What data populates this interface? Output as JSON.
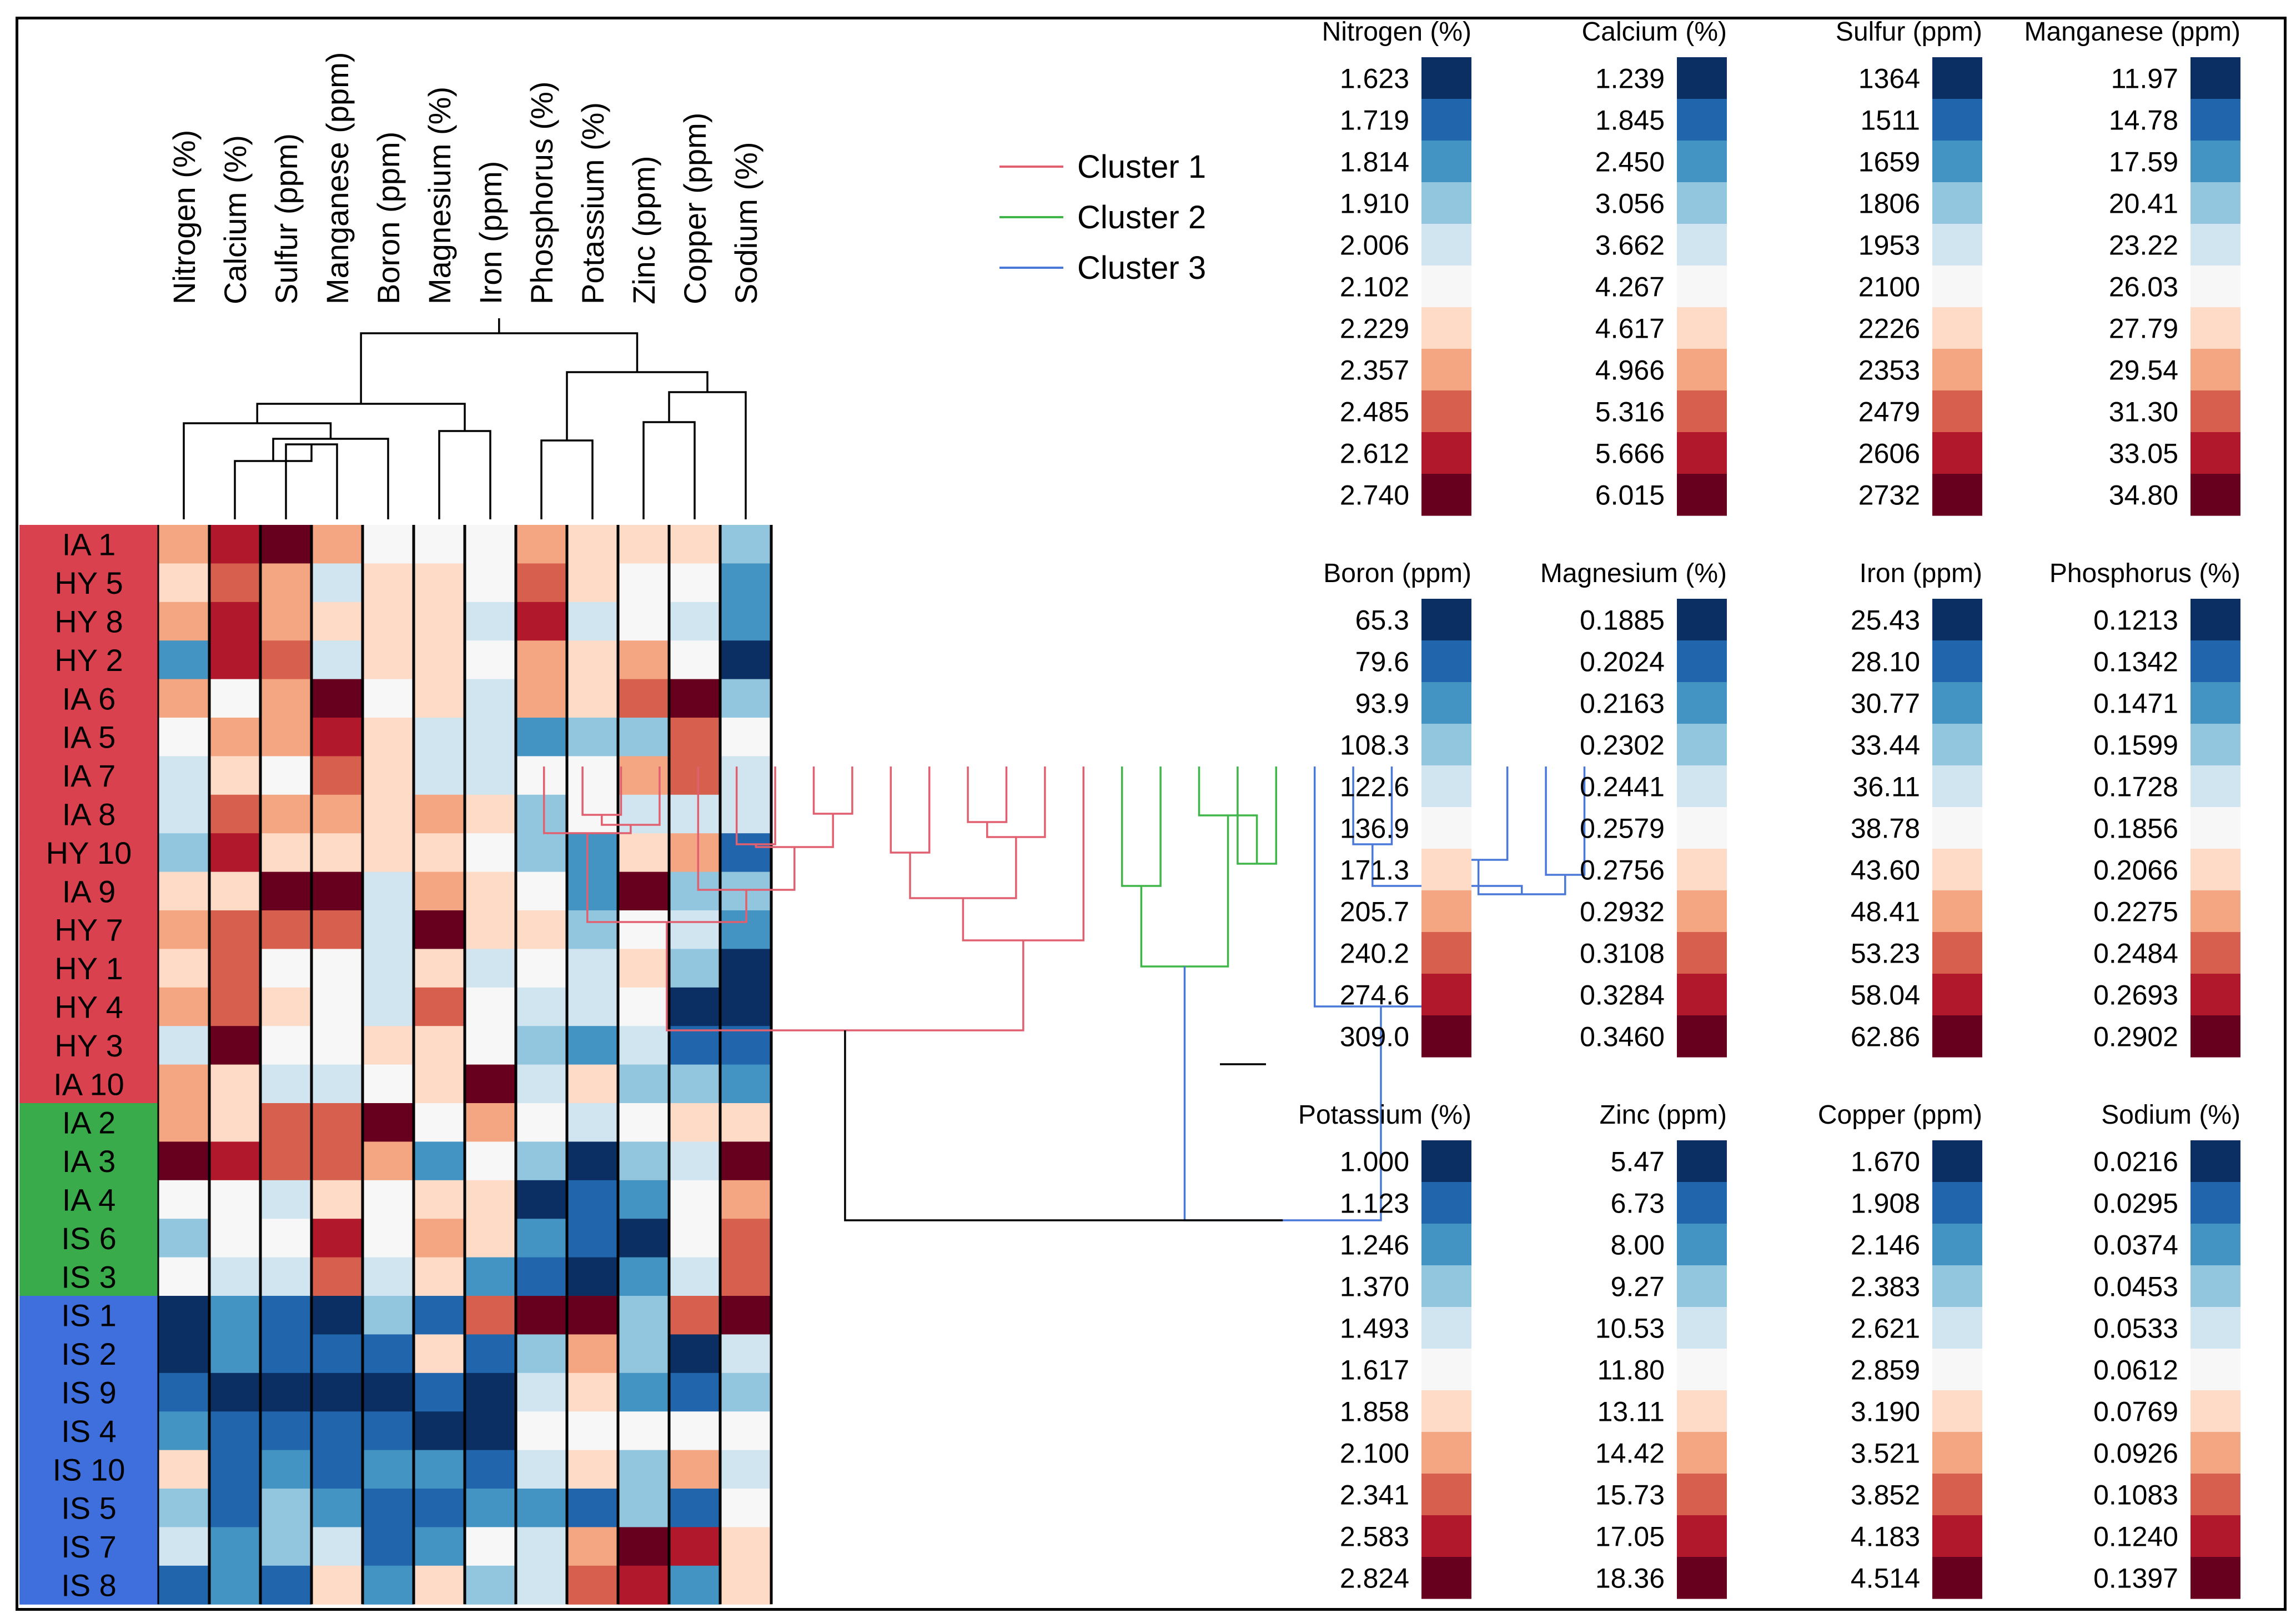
{
  "chart_data": {
    "type": "heatmap",
    "title": "",
    "scale_note": "Cell colors encode per-variable level on an 11-step scale: 1 = dark blue (lowest) ... 6 = white ... 11 = dark red (highest)",
    "variables": [
      "Nitrogen (%)",
      "Calcium (%)",
      "Sulfur (ppm)",
      "Manganese (ppm)",
      "Boron (ppm)",
      "Magnesium (%)",
      "Iron (ppm)",
      "Phosphorus (%)",
      "Potassium (%)",
      "Zinc (ppm)",
      "Copper (ppm)",
      "Sodium (%)"
    ],
    "samples": [
      "IA 1",
      "HY 5",
      "HY 8",
      "HY 2",
      "IA 6",
      "IA 5",
      "IA 7",
      "IA 8",
      "HY 10",
      "IA 9",
      "HY 7",
      "HY 1",
      "HY 4",
      "HY 3",
      "IA 10",
      "IA 2",
      "IA 3",
      "IA 4",
      "IS 6",
      "IS 3",
      "IS 1",
      "IS 2",
      "IS 9",
      "IS 4",
      "IS 10",
      "IS 5",
      "IS 7",
      "IS 8"
    ],
    "clusters": [
      {
        "name": "Cluster 1",
        "color": "#d9414f",
        "line_color": "#e06070",
        "members": [
          "IA 1",
          "HY 5",
          "HY 8",
          "HY 2",
          "IA 6",
          "IA 5",
          "IA 7",
          "IA 8",
          "HY 10",
          "IA 9",
          "HY 7",
          "HY 1",
          "HY 4",
          "HY 3",
          "IA 10"
        ]
      },
      {
        "name": "Cluster 2",
        "color": "#3aab4a",
        "line_color": "#40b54a",
        "members": [
          "IA 2",
          "IA 3",
          "IA 4",
          "IS 6",
          "IS 3"
        ]
      },
      {
        "name": "Cluster 3",
        "color": "#3f6fdd",
        "line_color": "#4a78d8",
        "members": [
          "IS 1",
          "IS 2",
          "IS 9",
          "IS 4",
          "IS 10",
          "IS 5",
          "IS 7",
          "IS 8"
        ]
      }
    ],
    "levels": [
      [
        8,
        10,
        11,
        8,
        6,
        6,
        6,
        8,
        7,
        7,
        7,
        4
      ],
      [
        7,
        9,
        8,
        5,
        7,
        7,
        6,
        9,
        7,
        6,
        6,
        3
      ],
      [
        8,
        10,
        8,
        7,
        7,
        7,
        5,
        10,
        5,
        6,
        5,
        3
      ],
      [
        3,
        10,
        9,
        5,
        7,
        7,
        6,
        8,
        7,
        8,
        6,
        1
      ],
      [
        8,
        6,
        8,
        11,
        6,
        7,
        5,
        8,
        7,
        9,
        11,
        4
      ],
      [
        6,
        8,
        8,
        10,
        7,
        5,
        5,
        3,
        4,
        4,
        9,
        6
      ],
      [
        5,
        7,
        6,
        9,
        7,
        5,
        5,
        6,
        6,
        8,
        9,
        5
      ],
      [
        5,
        9,
        8,
        8,
        7,
        8,
        7,
        4,
        6,
        5,
        5,
        5
      ],
      [
        4,
        10,
        7,
        7,
        7,
        7,
        6,
        4,
        3,
        7,
        8,
        2
      ],
      [
        7,
        7,
        11,
        11,
        5,
        8,
        7,
        6,
        3,
        11,
        4,
        4
      ],
      [
        8,
        9,
        9,
        9,
        5,
        11,
        7,
        7,
        4,
        6,
        5,
        3
      ],
      [
        7,
        9,
        6,
        6,
        5,
        7,
        5,
        6,
        5,
        7,
        4,
        1
      ],
      [
        8,
        9,
        7,
        6,
        5,
        9,
        6,
        5,
        5,
        6,
        1,
        1
      ],
      [
        5,
        11,
        6,
        6,
        7,
        7,
        6,
        4,
        3,
        5,
        2,
        2
      ],
      [
        8,
        7,
        5,
        5,
        6,
        7,
        11,
        5,
        7,
        4,
        4,
        3
      ],
      [
        8,
        7,
        9,
        9,
        11,
        6,
        8,
        6,
        5,
        6,
        7,
        7
      ],
      [
        11,
        10,
        9,
        9,
        8,
        3,
        6,
        4,
        1,
        4,
        5,
        11
      ],
      [
        6,
        6,
        5,
        7,
        6,
        7,
        7,
        1,
        2,
        3,
        6,
        8
      ],
      [
        4,
        6,
        6,
        10,
        6,
        8,
        7,
        3,
        2,
        1,
        6,
        9
      ],
      [
        6,
        5,
        5,
        9,
        5,
        7,
        3,
        2,
        1,
        3,
        5,
        9
      ],
      [
        1,
        3,
        2,
        1,
        4,
        2,
        9,
        11,
        11,
        4,
        9,
        11
      ],
      [
        1,
        3,
        2,
        2,
        2,
        7,
        2,
        4,
        8,
        4,
        1,
        5
      ],
      [
        2,
        1,
        1,
        1,
        1,
        2,
        1,
        5,
        7,
        3,
        2,
        4
      ],
      [
        3,
        2,
        2,
        2,
        2,
        1,
        1,
        6,
        6,
        6,
        6,
        6
      ],
      [
        7,
        2,
        3,
        2,
        3,
        3,
        2,
        5,
        7,
        4,
        8,
        5
      ],
      [
        4,
        2,
        4,
        3,
        2,
        2,
        3,
        3,
        2,
        4,
        2,
        6
      ],
      [
        5,
        3,
        4,
        5,
        2,
        3,
        6,
        5,
        8,
        11,
        10,
        7
      ],
      [
        2,
        3,
        2,
        7,
        3,
        7,
        4,
        5,
        9,
        10,
        3,
        7
      ]
    ],
    "legend": {
      "entries": [
        "Cluster 1",
        "Cluster 2",
        "Cluster 3"
      ],
      "colors": [
        "#e06070",
        "#40b54a",
        "#4a78d8"
      ],
      "placement": "top-center"
    },
    "color_scales": [
      {
        "variable": "Nitrogen (%)",
        "values": [
          "1.623",
          "1.719",
          "1.814",
          "1.910",
          "2.006",
          "2.102",
          "2.229",
          "2.357",
          "2.485",
          "2.612",
          "2.740"
        ]
      },
      {
        "variable": "Calcium (%)",
        "values": [
          "1.239",
          "1.845",
          "2.450",
          "3.056",
          "3.662",
          "4.267",
          "4.617",
          "4.966",
          "5.316",
          "5.666",
          "6.015"
        ]
      },
      {
        "variable": "Sulfur (ppm)",
        "values": [
          "1364",
          "1511",
          "1659",
          "1806",
          "1953",
          "2100",
          "2226",
          "2353",
          "2479",
          "2606",
          "2732"
        ]
      },
      {
        "variable": "Manganese (ppm)",
        "values": [
          "11.97",
          "14.78",
          "17.59",
          "20.41",
          "23.22",
          "26.03",
          "27.79",
          "29.54",
          "31.30",
          "33.05",
          "34.80"
        ]
      },
      {
        "variable": "Boron (ppm)",
        "values": [
          "65.3",
          "79.6",
          "93.9",
          "108.3",
          "122.6",
          "136.9",
          "171.3",
          "205.7",
          "240.2",
          "274.6",
          "309.0"
        ]
      },
      {
        "variable": "Magnesium (%)",
        "values": [
          "0.1885",
          "0.2024",
          "0.2163",
          "0.2302",
          "0.2441",
          "0.2579",
          "0.2756",
          "0.2932",
          "0.3108",
          "0.3284",
          "0.3460"
        ]
      },
      {
        "variable": "Iron (ppm)",
        "values": [
          "25.43",
          "28.10",
          "30.77",
          "33.44",
          "36.11",
          "38.78",
          "43.60",
          "48.41",
          "53.23",
          "58.04",
          "62.86"
        ]
      },
      {
        "variable": "Phosphorus (%)",
        "values": [
          "0.1213",
          "0.1342",
          "0.1471",
          "0.1599",
          "0.1728",
          "0.1856",
          "0.2066",
          "0.2275",
          "0.2484",
          "0.2693",
          "0.2902"
        ]
      },
      {
        "variable": "Potassium (%)",
        "values": [
          "1.000",
          "1.123",
          "1.246",
          "1.370",
          "1.493",
          "1.617",
          "1.858",
          "2.100",
          "2.341",
          "2.583",
          "2.824"
        ]
      },
      {
        "variable": "Zinc (ppm)",
        "values": [
          "5.47",
          "6.73",
          "8.00",
          "9.27",
          "10.53",
          "11.80",
          "13.11",
          "14.42",
          "15.73",
          "17.05",
          "18.36"
        ]
      },
      {
        "variable": "Copper (ppm)",
        "values": [
          "1.670",
          "1.908",
          "2.146",
          "2.383",
          "2.621",
          "2.859",
          "3.190",
          "3.521",
          "3.852",
          "4.183",
          "4.514"
        ]
      },
      {
        "variable": "Sodium (%)",
        "values": [
          "0.0216",
          "0.0295",
          "0.0374",
          "0.0453",
          "0.0533",
          "0.0612",
          "0.0769",
          "0.0926",
          "0.1083",
          "0.1240",
          "0.1397"
        ]
      }
    ],
    "palette": [
      "#0b2f63",
      "#2166ac",
      "#4393c3",
      "#92c5de",
      "#d1e5f0",
      "#f7f7f7",
      "#fddbc7",
      "#f4a582",
      "#d6604d",
      "#b2182b",
      "#67001f"
    ]
  }
}
